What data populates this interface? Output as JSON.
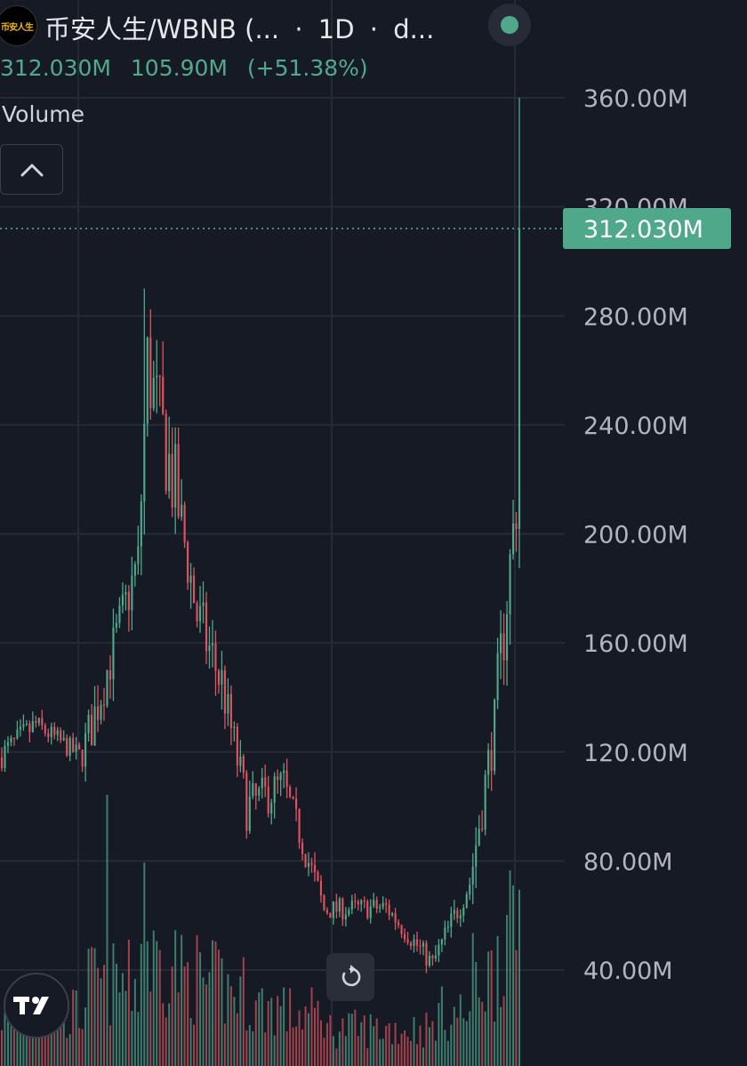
{
  "header": {
    "logo_text": "币安人生",
    "title": "币安人生/WBNB (...",
    "separator": "·",
    "interval": "1D",
    "extra": "d..."
  },
  "values": {
    "last": "312.030M",
    "change": "105.90M",
    "change_pct": "(+51.38%)"
  },
  "indicator": {
    "label": "Volume"
  },
  "colors": {
    "background": "#161a25",
    "up": "#4fa88a",
    "down": "#e0525d",
    "grid": "#262a35",
    "axis_text": "#b2b5be",
    "price_line": "#4fa88a"
  },
  "icons": {
    "collapse": "chevron-up-icon",
    "reset": "reset-chart-icon",
    "brand": "tradingview-logo-icon"
  },
  "chart_data": {
    "type": "candlestick",
    "title": "",
    "y_axis_ticks": [
      "360.00M",
      "320.00M",
      "280.00M",
      "240.00M",
      "200.00M",
      "160.00M",
      "120.00M",
      "80.00M",
      "40.00M"
    ],
    "y_axis_values": [
      360,
      320,
      280,
      240,
      200,
      160,
      120,
      80,
      40
    ],
    "y_unit": "M",
    "ylim": [
      0,
      368
    ],
    "last_price_label": "312.030M",
    "last_price": 312.03,
    "grid": true,
    "phases": [
      {
        "from": 0,
        "to": 12,
        "start": 118,
        "end": 130,
        "vol": 0.35,
        "noise": 5
      },
      {
        "from": 12,
        "to": 27,
        "start": 130,
        "end": 118,
        "vol": 0.35,
        "noise": 4
      },
      {
        "from": 27,
        "to": 45,
        "start": 118,
        "end": 190,
        "vol": 0.55,
        "noise": 10
      },
      {
        "from": 45,
        "to": 48,
        "start": 190,
        "end": 262,
        "vol": 0.8,
        "noise": 20
      },
      {
        "from": 48,
        "to": 58,
        "start": 262,
        "end": 210,
        "vol": 0.7,
        "noise": 18
      },
      {
        "from": 58,
        "to": 64,
        "start": 210,
        "end": 170,
        "vol": 0.6,
        "noise": 12
      },
      {
        "from": 64,
        "to": 72,
        "start": 170,
        "end": 145,
        "vol": 0.55,
        "noise": 12
      },
      {
        "from": 72,
        "to": 80,
        "start": 145,
        "end": 100,
        "vol": 0.5,
        "noise": 9
      },
      {
        "from": 80,
        "to": 92,
        "start": 100,
        "end": 108,
        "vol": 0.4,
        "noise": 8
      },
      {
        "from": 92,
        "to": 105,
        "start": 108,
        "end": 62,
        "vol": 0.35,
        "noise": 6
      },
      {
        "from": 105,
        "to": 125,
        "start": 62,
        "end": 63,
        "vol": 0.25,
        "noise": 4
      },
      {
        "from": 125,
        "to": 140,
        "start": 63,
        "end": 42,
        "vol": 0.25,
        "noise": 4
      },
      {
        "from": 140,
        "to": 152,
        "start": 42,
        "end": 72,
        "vol": 0.35,
        "noise": 5
      },
      {
        "from": 152,
        "to": 160,
        "start": 72,
        "end": 130,
        "vol": 0.6,
        "noise": 10
      },
      {
        "from": 160,
        "to": 167,
        "start": 130,
        "end": 212,
        "vol": 0.85,
        "noise": 15
      },
      {
        "from": 167,
        "to": 168,
        "start": 212,
        "end": 312,
        "vol": 1.0,
        "noise": 40
      }
    ],
    "spike_index": 46,
    "spike_high": 290,
    "final_high": 360,
    "volume_spikes": [
      {
        "i": 34,
        "v": 1.0
      },
      {
        "i": 46,
        "v": 0.75
      },
      {
        "i": 167,
        "v": 0.65
      }
    ]
  }
}
